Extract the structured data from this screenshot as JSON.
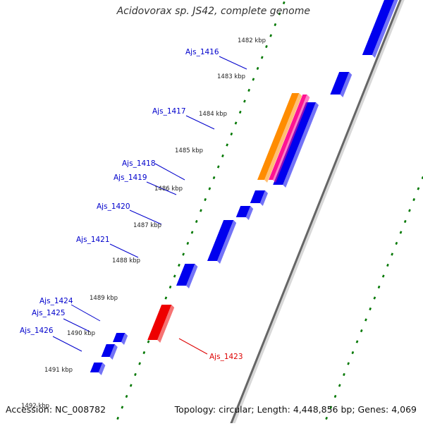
{
  "title": "Acidovorax sp. JS42, complete genome",
  "accession_label": "Accession: NC_008782",
  "summary_label": "Topology: circular; Length: 4,448,856 bp; Genes: 4,069",
  "kbp_ticks": [
    {
      "label": "1482 kbp"
    },
    {
      "label": "1483 kbp"
    },
    {
      "label": "1484 kbp"
    },
    {
      "label": "1485 kbp"
    },
    {
      "label": "1486 kbp"
    },
    {
      "label": "1487 kbp"
    },
    {
      "label": "1488 kbp"
    },
    {
      "label": "1489 kbp"
    },
    {
      "label": "1490 kbp"
    },
    {
      "label": "1491 kbp"
    },
    {
      "label": "1492 kbp"
    }
  ],
  "gene_labels": [
    {
      "text": "Ajs_1416",
      "color": "#0000cc"
    },
    {
      "text": "Ajs_1417",
      "color": "#0000cc"
    },
    {
      "text": "Ajs_1418",
      "color": "#0000cc"
    },
    {
      "text": "Ajs_1419",
      "color": "#0000cc"
    },
    {
      "text": "Ajs_1420",
      "color": "#0000cc"
    },
    {
      "text": "Ajs_1421",
      "color": "#0000cc"
    },
    {
      "text": "Ajs_1424",
      "color": "#0000cc"
    },
    {
      "text": "Ajs_1425",
      "color": "#0000cc"
    },
    {
      "text": "Ajs_1426",
      "color": "#0000cc"
    },
    {
      "text": "Ajs_1423",
      "color": "#dd0000"
    }
  ],
  "colors": {
    "forward_cds": "#0000ee",
    "reverse_cds": "#ee0000",
    "orange_feature": "#ff8c00",
    "pink_feature": "#ff1493",
    "backbone": "#666666",
    "gc_dots": "#007700"
  }
}
